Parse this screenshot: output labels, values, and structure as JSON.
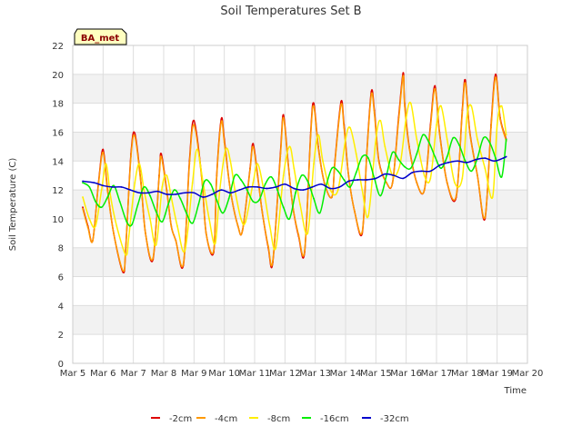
{
  "chart_data": {
    "type": "line",
    "title": "Soil Temperatures Set B",
    "xlabel": "Time",
    "ylabel": "Soil Temperature (C)",
    "tag": "BA_met",
    "ylim": [
      0,
      22
    ],
    "yticks": [
      0,
      2,
      4,
      6,
      8,
      10,
      12,
      14,
      16,
      18,
      20,
      22
    ],
    "xlim": [
      0,
      15
    ],
    "xticks": [
      "Mar 5",
      "Mar 6",
      "Mar 7",
      "Mar 8",
      "Mar 9",
      "Mar 10",
      "Mar 11",
      "Mar 12",
      "Mar 13",
      "Mar 14",
      "Mar 15",
      "Mar 16",
      "Mar 17",
      "Mar 18",
      "Mar 19",
      "Mar 20"
    ],
    "grid": true,
    "background_bands": "alternating light gray",
    "legend_position": "bottom-center",
    "series": [
      {
        "name": "-2cm",
        "color": "#dd0000",
        "x": [
          0.33,
          0.5,
          0.66,
          0.85,
          1.0,
          1.15,
          1.35,
          1.66,
          1.75,
          1.92,
          2.05,
          2.25,
          2.4,
          2.65,
          2.85,
          2.92,
          3.1,
          3.25,
          3.4,
          3.65,
          3.85,
          4.0,
          4.25,
          4.4,
          4.65,
          4.75,
          4.9,
          5.0,
          5.2,
          5.45,
          5.6,
          5.85,
          5.95,
          6.1,
          6.25,
          6.45,
          6.6,
          6.85,
          6.95,
          7.1,
          7.25,
          7.45,
          7.65,
          7.85,
          7.95,
          8.1,
          8.3,
          8.55,
          8.65,
          8.85,
          8.95,
          9.1,
          9.3,
          9.55,
          9.7,
          9.85,
          9.95,
          10.1,
          10.35,
          10.55,
          10.75,
          10.9,
          10.95,
          11.1,
          11.35,
          11.6,
          11.8,
          11.95,
          12.1,
          12.35,
          12.65,
          12.85,
          12.95,
          13.1,
          13.35,
          13.6,
          13.8,
          13.95,
          14.1,
          14.3
        ],
        "y": [
          10.8,
          9.5,
          8.5,
          12.5,
          14.8,
          12.0,
          9.0,
          6.3,
          8.0,
          14.5,
          15.9,
          12.5,
          9.0,
          7.2,
          13.0,
          14.5,
          12.0,
          9.5,
          8.5,
          6.8,
          14.0,
          16.8,
          13.0,
          9.0,
          7.7,
          13.0,
          16.9,
          15.5,
          12.0,
          9.5,
          9.2,
          13.5,
          15.2,
          13.0,
          10.5,
          8.0,
          7.0,
          14.5,
          17.2,
          14.0,
          11.0,
          8.8,
          7.7,
          16.0,
          18.0,
          15.0,
          12.5,
          11.5,
          14.0,
          18.1,
          16.5,
          13.0,
          10.5,
          9.0,
          14.5,
          18.8,
          17.5,
          14.0,
          12.5,
          12.5,
          17.0,
          20.1,
          18.0,
          15.0,
          12.5,
          12.0,
          16.5,
          19.2,
          16.0,
          12.5,
          11.5,
          17.5,
          19.6,
          16.0,
          13.0,
          10.0,
          16.5,
          20.0,
          17.0,
          15.5
        ]
      },
      {
        "name": "-4cm",
        "color": "#ff9900",
        "x": [
          0.33,
          0.5,
          0.66,
          0.85,
          1.0,
          1.15,
          1.35,
          1.66,
          1.75,
          1.92,
          2.05,
          2.25,
          2.4,
          2.65,
          2.85,
          2.92,
          3.1,
          3.25,
          3.4,
          3.65,
          3.85,
          4.0,
          4.25,
          4.4,
          4.65,
          4.75,
          4.9,
          5.0,
          5.2,
          5.45,
          5.6,
          5.85,
          5.95,
          6.1,
          6.25,
          6.45,
          6.6,
          6.85,
          6.95,
          7.1,
          7.25,
          7.45,
          7.65,
          7.85,
          7.95,
          8.1,
          8.3,
          8.55,
          8.65,
          8.85,
          8.95,
          9.1,
          9.3,
          9.55,
          9.7,
          9.85,
          9.95,
          10.1,
          10.35,
          10.55,
          10.75,
          10.9,
          10.95,
          11.1,
          11.35,
          11.6,
          11.8,
          11.95,
          12.1,
          12.35,
          12.65,
          12.85,
          12.95,
          13.1,
          13.35,
          13.6,
          13.8,
          13.95,
          14.1,
          14.3
        ],
        "y": [
          10.7,
          9.4,
          8.5,
          12.4,
          14.6,
          11.9,
          9.0,
          6.4,
          8.1,
          14.3,
          15.7,
          12.4,
          9.0,
          7.3,
          12.9,
          14.3,
          11.9,
          9.5,
          8.5,
          6.9,
          13.8,
          16.5,
          12.9,
          9.0,
          7.8,
          12.9,
          16.7,
          15.3,
          12.0,
          9.5,
          9.2,
          13.4,
          15.0,
          12.9,
          10.5,
          8.1,
          7.1,
          14.3,
          17.0,
          13.9,
          11.0,
          8.9,
          7.8,
          15.8,
          17.8,
          14.9,
          12.5,
          11.5,
          13.9,
          17.9,
          16.3,
          13.0,
          10.5,
          9.1,
          14.4,
          18.6,
          17.3,
          13.9,
          12.5,
          12.5,
          16.8,
          19.9,
          17.8,
          14.9,
          12.5,
          12.0,
          16.3,
          19.0,
          15.9,
          12.5,
          11.6,
          17.3,
          19.4,
          15.9,
          13.0,
          10.1,
          16.3,
          19.8,
          16.9,
          15.4
        ]
      },
      {
        "name": "-8cm",
        "color": "#ffee00",
        "x": [
          0.33,
          0.55,
          0.75,
          0.95,
          1.1,
          1.25,
          1.45,
          1.75,
          1.85,
          2.05,
          2.2,
          2.35,
          2.55,
          2.75,
          2.95,
          3.1,
          3.25,
          3.45,
          3.7,
          3.95,
          4.1,
          4.3,
          4.5,
          4.7,
          4.85,
          5.05,
          5.2,
          5.35,
          5.55,
          5.7,
          5.95,
          6.1,
          6.3,
          6.5,
          6.7,
          6.95,
          7.15,
          7.3,
          7.5,
          7.75,
          7.95,
          8.1,
          8.25,
          8.5,
          8.75,
          9.0,
          9.15,
          9.35,
          9.55,
          9.75,
          10.0,
          10.15,
          10.3,
          10.55,
          10.8,
          11.0,
          11.15,
          11.35,
          11.6,
          11.8,
          12.0,
          12.15,
          12.35,
          12.6,
          12.85,
          13.0,
          13.15,
          13.35,
          13.6,
          13.85,
          14.0,
          14.15,
          14.3
        ],
        "y": [
          11.5,
          10.0,
          9.5,
          12.0,
          13.8,
          11.5,
          9.5,
          7.5,
          8.8,
          12.5,
          13.8,
          12.0,
          10.0,
          8.2,
          12.2,
          13.0,
          11.5,
          9.5,
          7.8,
          12.5,
          14.8,
          12.5,
          10.0,
          8.3,
          12.0,
          14.8,
          14.0,
          12.0,
          10.0,
          9.8,
          12.5,
          13.8,
          12.0,
          9.5,
          8.0,
          13.0,
          15.0,
          13.5,
          11.0,
          9.0,
          13.8,
          15.8,
          14.0,
          12.0,
          12.0,
          15.5,
          16.3,
          14.5,
          12.0,
          10.2,
          15.5,
          16.8,
          15.0,
          13.0,
          13.8,
          17.0,
          18.0,
          15.5,
          13.0,
          12.8,
          16.5,
          17.8,
          15.5,
          12.5,
          12.8,
          17.0,
          17.8,
          15.5,
          13.5,
          11.5,
          16.5,
          17.8,
          15.8
        ]
      },
      {
        "name": "-16cm",
        "color": "#00ee00",
        "x": [
          0.33,
          0.55,
          0.75,
          0.95,
          1.15,
          1.35,
          1.55,
          1.78,
          1.95,
          2.15,
          2.35,
          2.55,
          2.75,
          2.95,
          3.15,
          3.35,
          3.55,
          3.75,
          3.95,
          4.15,
          4.35,
          4.55,
          4.75,
          4.95,
          5.15,
          5.35,
          5.55,
          5.75,
          5.95,
          6.15,
          6.35,
          6.55,
          6.75,
          6.95,
          7.15,
          7.35,
          7.55,
          7.75,
          7.95,
          8.15,
          8.35,
          8.55,
          8.75,
          8.95,
          9.15,
          9.35,
          9.55,
          9.75,
          9.95,
          10.15,
          10.35,
          10.55,
          10.75,
          10.95,
          11.15,
          11.35,
          11.55,
          11.75,
          11.95,
          12.15,
          12.35,
          12.55,
          12.75,
          12.95,
          13.15,
          13.35,
          13.55,
          13.75,
          13.95,
          14.15,
          14.3
        ],
        "y": [
          12.5,
          12.2,
          11.2,
          10.8,
          11.5,
          12.3,
          11.2,
          9.8,
          9.6,
          11.0,
          12.2,
          11.6,
          10.5,
          9.8,
          11.0,
          12.0,
          11.4,
          10.4,
          9.7,
          11.0,
          12.6,
          12.4,
          11.3,
          10.4,
          11.4,
          13.0,
          12.7,
          12.0,
          11.2,
          11.3,
          12.4,
          12.9,
          12.0,
          10.8,
          10.0,
          11.8,
          13.0,
          12.6,
          11.4,
          10.4,
          12.2,
          13.5,
          13.3,
          12.7,
          12.2,
          13.2,
          14.3,
          14.2,
          12.8,
          11.6,
          13.0,
          14.6,
          14.1,
          13.6,
          13.5,
          14.5,
          15.8,
          15.3,
          14.3,
          13.5,
          14.3,
          15.6,
          15.1,
          14.0,
          13.3,
          14.2,
          15.6,
          15.3,
          14.2,
          12.9,
          15.5
        ]
      },
      {
        "name": "-32cm",
        "color": "#0000cc",
        "x": [
          0.33,
          0.7,
          1.0,
          1.3,
          1.6,
          1.9,
          2.2,
          2.5,
          2.8,
          3.1,
          3.4,
          3.7,
          4.0,
          4.3,
          4.6,
          4.9,
          5.2,
          5.5,
          5.8,
          6.1,
          6.4,
          6.7,
          7.0,
          7.3,
          7.6,
          7.9,
          8.2,
          8.5,
          8.8,
          9.1,
          9.4,
          9.7,
          10.0,
          10.3,
          10.6,
          10.9,
          11.2,
          11.5,
          11.8,
          12.1,
          12.4,
          12.7,
          13.0,
          13.3,
          13.6,
          13.9,
          14.2,
          14.3
        ],
        "y": [
          12.6,
          12.5,
          12.3,
          12.2,
          12.2,
          12.0,
          11.8,
          11.8,
          11.9,
          11.7,
          11.7,
          11.8,
          11.8,
          11.5,
          11.7,
          12.0,
          11.8,
          12.0,
          12.2,
          12.2,
          12.1,
          12.2,
          12.4,
          12.1,
          12.0,
          12.2,
          12.4,
          12.1,
          12.2,
          12.6,
          12.7,
          12.7,
          12.8,
          13.1,
          13.0,
          12.8,
          13.2,
          13.3,
          13.3,
          13.7,
          13.9,
          14.0,
          13.9,
          14.1,
          14.2,
          14.0,
          14.2,
          14.3
        ]
      }
    ]
  }
}
